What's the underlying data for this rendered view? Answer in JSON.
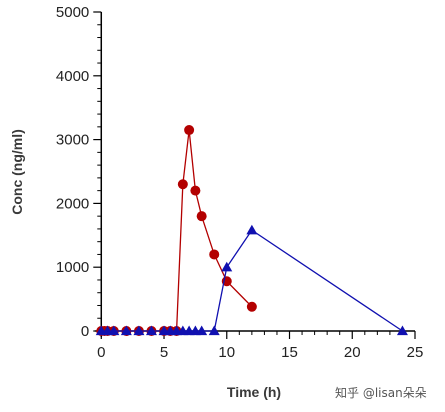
{
  "chart_data": {
    "type": "line",
    "xlabel": "Time (h)",
    "ylabel": "Conc (ng/ml)",
    "xlim": [
      -0.5,
      25
    ],
    "ylim": [
      0,
      5000
    ],
    "x_ticks": [
      0,
      5,
      10,
      15,
      20,
      25
    ],
    "y_ticks": [
      0,
      1000,
      2000,
      3000,
      4000,
      5000
    ],
    "grid": false,
    "legend": "none",
    "series": [
      {
        "color": "#b30000",
        "marker": "circle",
        "x": [
          0,
          0.25,
          0.5,
          1,
          2,
          3,
          4,
          5,
          5.5,
          6,
          6.5,
          7,
          7.5,
          8,
          9,
          10,
          12
        ],
        "y": [
          0,
          0,
          0,
          0,
          0,
          0,
          0,
          0,
          0,
          0,
          2300,
          3150,
          2200,
          1800,
          1200,
          780,
          380
        ]
      },
      {
        "color": "#1010b0",
        "marker": "triangle",
        "x": [
          0,
          0.5,
          1,
          2,
          3,
          4,
          5,
          5.5,
          6,
          6.5,
          7,
          7.5,
          8,
          9,
          10,
          12,
          24
        ],
        "y": [
          0,
          0,
          0,
          0,
          0,
          0,
          0,
          0,
          0,
          0,
          0,
          0,
          0,
          0,
          1000,
          1580,
          0
        ]
      }
    ]
  },
  "watermark": "知乎 @lisan朵朵"
}
